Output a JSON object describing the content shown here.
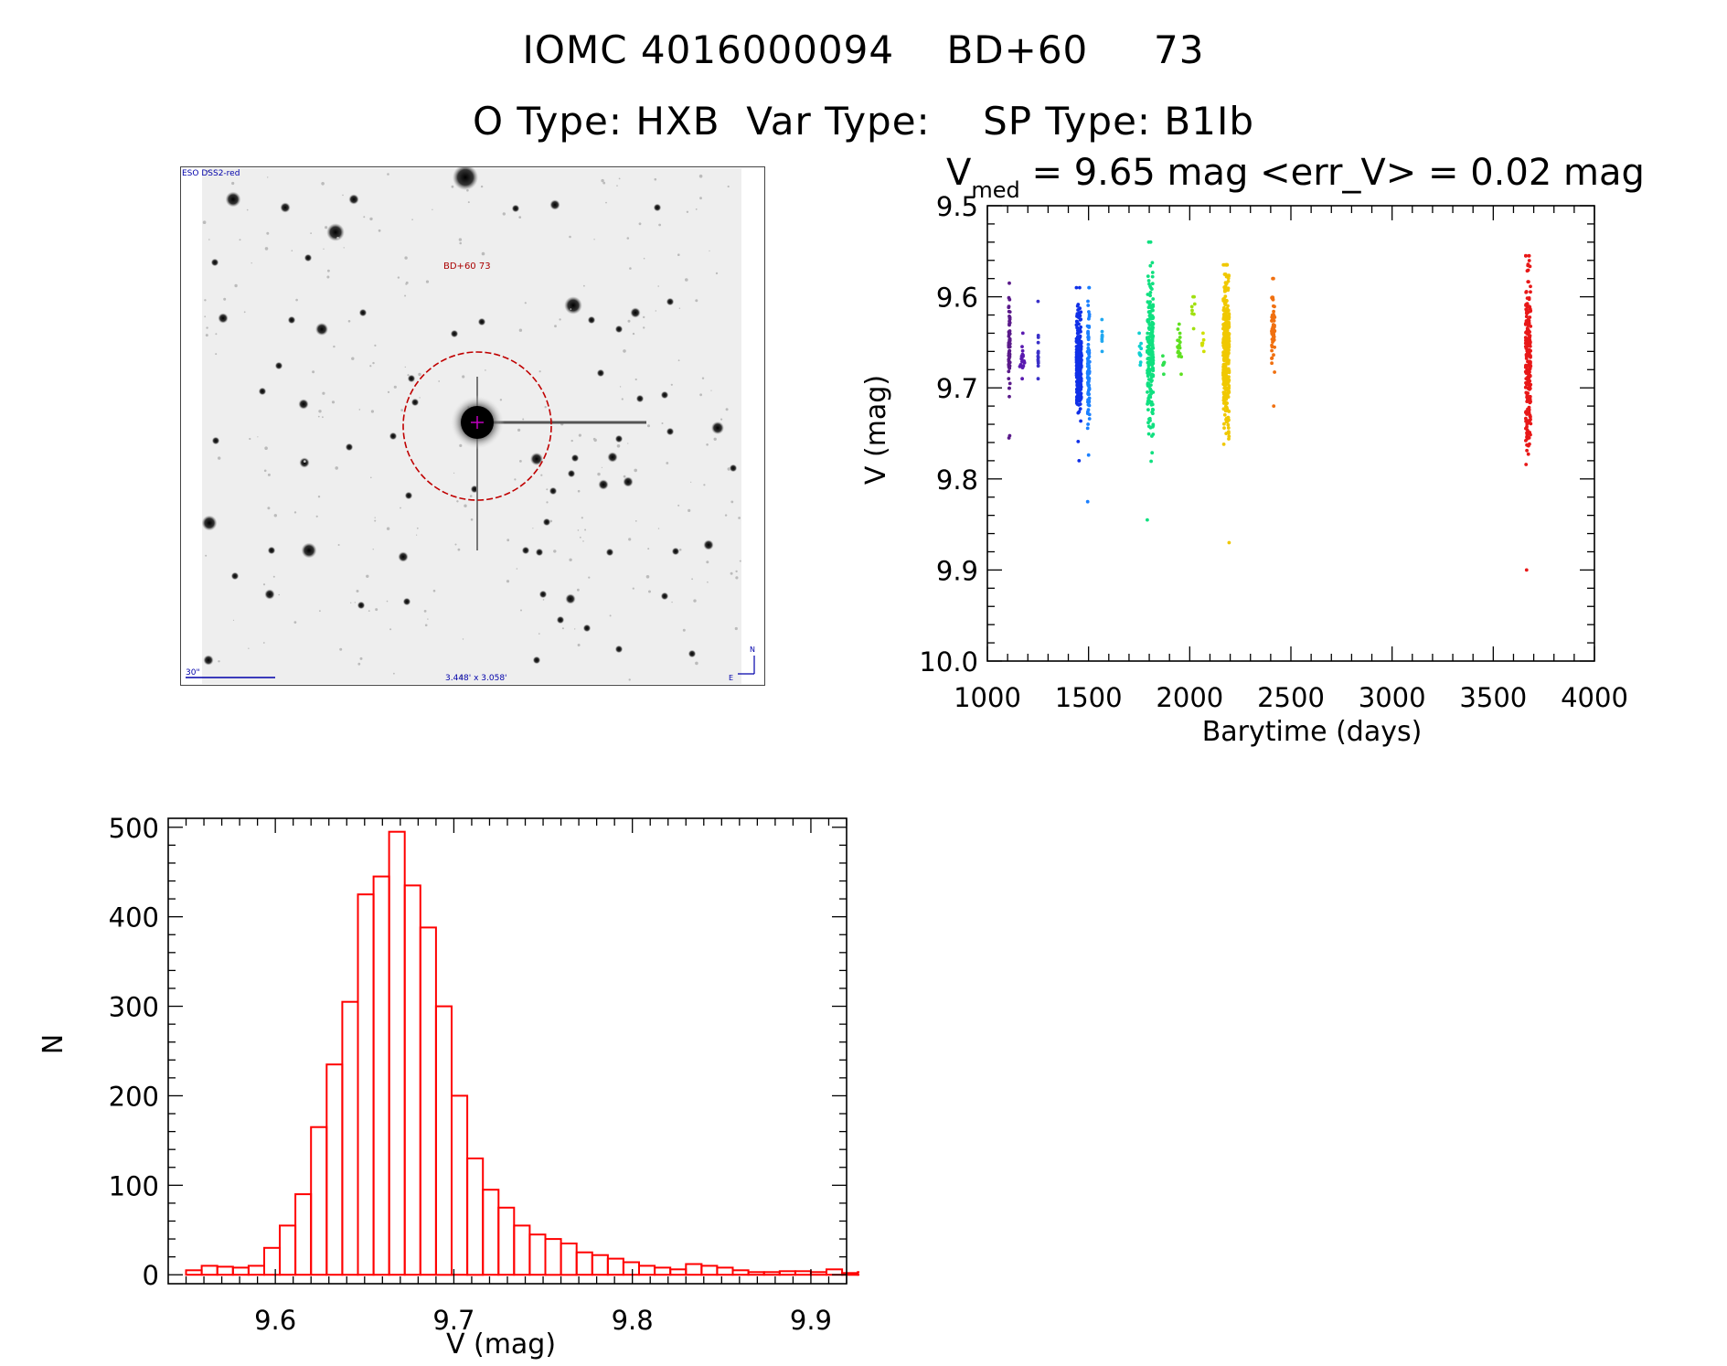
{
  "header": {
    "line1": "IOMC 4016000094    BD+60     73",
    "line2": "O Type: HXB  Var Type:    SP Type: B1Ib"
  },
  "finder_chart": {
    "survey_label": "ESO DSS2-red",
    "target_label": "BD+60 73",
    "scale_label": "30\"",
    "size_label": "3.448' x 3.058'",
    "north_label": "N",
    "east_label": "E",
    "colors": {
      "circle": "#c00000",
      "text_blue": "#0000aa",
      "target_text": "#aa0000"
    }
  },
  "chart_data": [
    {
      "type": "scatter",
      "title_main": "V",
      "title_sub": "med",
      "title_rest": " = 9.65 mag <err_V> = 0.02 mag",
      "xlabel": "Barytime (days)",
      "ylabel": "V (mag)",
      "xlim": [
        1000,
        4000
      ],
      "ylim": [
        10.0,
        9.5
      ],
      "y_inverted": true,
      "xticks": [
        1000,
        1500,
        2000,
        2500,
        3000,
        3500,
        4000
      ],
      "xtick_labels": [
        "1000",
        "1500",
        "2000",
        "2500",
        "3000",
        "3500",
        "4000"
      ],
      "yticks": [
        9.5,
        9.6,
        9.7,
        9.8,
        9.9,
        10.0
      ],
      "ytick_labels": [
        "9.5",
        "9.6",
        "9.7",
        "9.8",
        "9.9",
        "10.0"
      ],
      "groups": [
        {
          "x": [
            1105,
            1112
          ],
          "y_range": [
            9.585,
            9.755
          ],
          "center": 9.66,
          "n": 60,
          "color": "#5a1a8a"
        },
        {
          "x": [
            1160,
            1185
          ],
          "y_range": [
            9.64,
            9.69
          ],
          "center": 9.67,
          "n": 20,
          "color": "#5a1ab0"
        },
        {
          "x": [
            1250,
            1252
          ],
          "y_range": [
            9.605,
            9.69
          ],
          "center": 9.655,
          "n": 14,
          "color": "#3a30c8"
        },
        {
          "x": [
            1440,
            1465
          ],
          "y_range": [
            9.59,
            9.78
          ],
          "center": 9.67,
          "n": 260,
          "color": "#1030e8"
        },
        {
          "x": [
            1495,
            1505
          ],
          "y_range": [
            9.59,
            9.825
          ],
          "center": 9.68,
          "n": 90,
          "color": "#1a80ff"
        },
        {
          "x": [
            1565,
            1568
          ],
          "y_range": [
            9.625,
            9.66
          ],
          "center": 9.645,
          "n": 8,
          "color": "#20a8f0"
        },
        {
          "x": [
            1750,
            1760
          ],
          "y_range": [
            9.64,
            9.675
          ],
          "center": 9.66,
          "n": 10,
          "color": "#10d0d0"
        },
        {
          "x": [
            1790,
            1820
          ],
          "y_range": [
            9.54,
            9.845
          ],
          "center": 9.66,
          "n": 220,
          "color": "#10e080"
        },
        {
          "x": [
            1865,
            1875
          ],
          "y_range": [
            9.665,
            9.685
          ],
          "center": 9.675,
          "n": 6,
          "color": "#30e050"
        },
        {
          "x": [
            1940,
            1960
          ],
          "y_range": [
            9.63,
            9.685
          ],
          "center": 9.655,
          "n": 18,
          "color": "#60e020"
        },
        {
          "x": [
            2010,
            2030
          ],
          "y_range": [
            9.6,
            9.635
          ],
          "center": 9.615,
          "n": 8,
          "color": "#a0e010"
        },
        {
          "x": [
            2060,
            2070
          ],
          "y_range": [
            9.64,
            9.66
          ],
          "center": 9.65,
          "n": 6,
          "color": "#d0e000"
        },
        {
          "x": [
            2165,
            2195
          ],
          "y_range": [
            9.565,
            9.87
          ],
          "center": 9.66,
          "n": 320,
          "color": "#f0c800"
        },
        {
          "x": [
            2405,
            2420
          ],
          "y_range": [
            9.58,
            9.72
          ],
          "center": 9.635,
          "n": 70,
          "color": "#f07010"
        },
        {
          "x": [
            3660,
            3685
          ],
          "y_range": [
            9.555,
            9.9
          ],
          "center": 9.67,
          "n": 220,
          "color": "#e81818"
        }
      ]
    },
    {
      "type": "bar",
      "style": "step-histogram",
      "xlabel": "V (mag)",
      "ylabel": "N",
      "xlim": [
        9.54,
        9.92
      ],
      "ylim": [
        -10,
        510
      ],
      "xticks": [
        9.6,
        9.7,
        9.8,
        9.9
      ],
      "xtick_labels": [
        "9.6",
        "9.7",
        "9.8",
        "9.9"
      ],
      "yticks": [
        0,
        100,
        200,
        300,
        400,
        500
      ],
      "ytick_labels": [
        "0",
        "100",
        "200",
        "300",
        "400",
        "500"
      ],
      "bin_start": 9.55,
      "bin_width": 0.00875,
      "values": [
        5,
        10,
        9,
        8,
        10,
        30,
        55,
        90,
        165,
        235,
        305,
        425,
        445,
        495,
        435,
        388,
        300,
        200,
        130,
        95,
        75,
        55,
        45,
        40,
        35,
        25,
        22,
        18,
        14,
        10,
        8,
        6,
        12,
        10,
        8,
        5,
        3,
        3,
        4,
        4,
        3,
        6,
        2,
        3,
        1,
        2,
        2,
        4
      ],
      "color": "#ff0000"
    }
  ]
}
